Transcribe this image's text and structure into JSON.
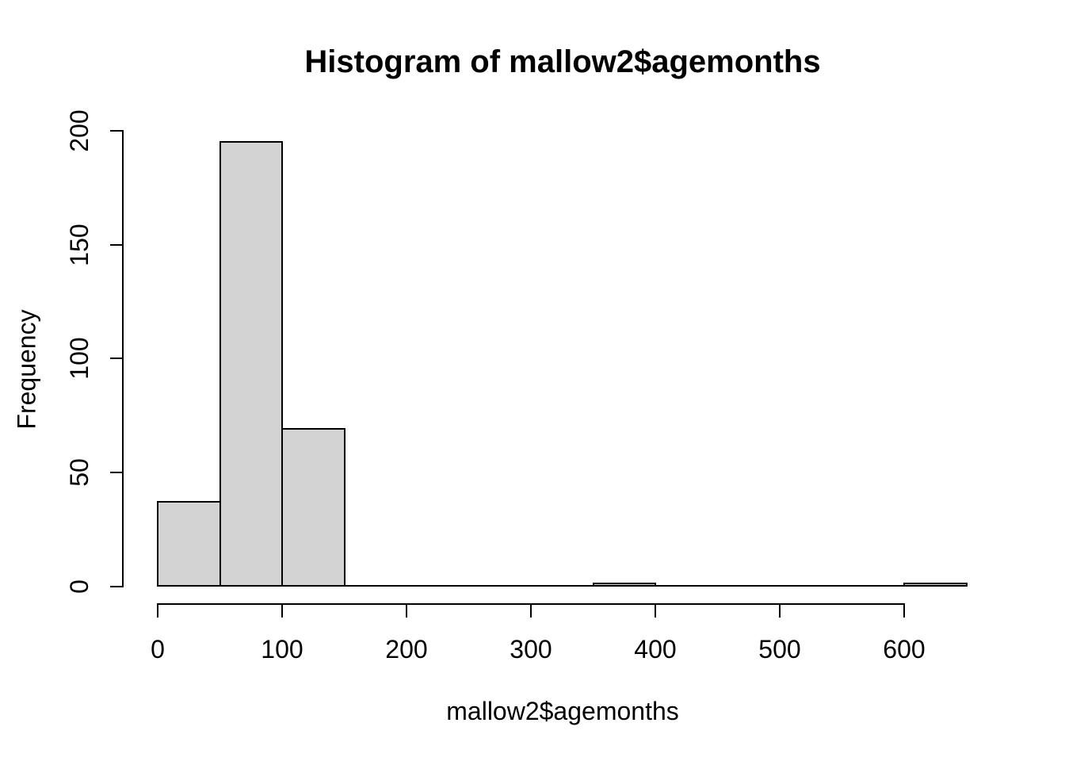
{
  "chart_data": {
    "type": "bar",
    "chart_kind": "histogram",
    "title": "Histogram of mallow2$agemonths",
    "xlabel": "mallow2$agemonths",
    "ylabel": "Frequency",
    "bin_breaks": [
      0,
      50,
      100,
      150,
      200,
      250,
      300,
      350,
      400,
      450,
      500,
      550,
      600,
      650
    ],
    "counts": [
      37,
      195,
      69,
      0,
      0,
      0,
      0,
      1,
      0,
      0,
      0,
      0,
      1
    ],
    "xticks": [
      0,
      100,
      200,
      300,
      400,
      500,
      600
    ],
    "yticks": [
      0,
      50,
      100,
      150,
      200
    ],
    "xlim": [
      0,
      650
    ],
    "ylim": [
      0,
      200
    ],
    "bar_fill": "#d3d3d3",
    "bar_border": "#000000",
    "axis_color": "#000000",
    "text_color": "#000000",
    "background": "#ffffff",
    "grid": false,
    "legend": false
  }
}
